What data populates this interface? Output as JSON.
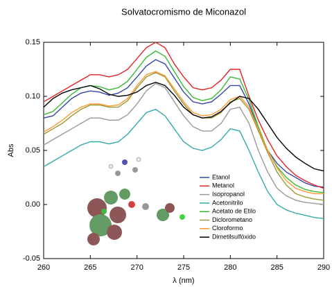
{
  "chart_data": {
    "type": "line",
    "title": "Solvatocromismo de Miconazol",
    "x_label": "λ (nm)",
    "y_label": "Abs",
    "x": [
      260,
      261,
      262,
      263,
      264,
      265,
      266,
      267,
      268,
      269,
      270,
      271,
      272,
      273,
      274,
      275,
      276,
      277,
      278,
      279,
      280,
      281,
      282,
      283,
      284,
      285,
      286,
      287,
      288,
      289,
      290
    ],
    "xlim": [
      260,
      290
    ],
    "xticks": [
      260,
      265,
      270,
      275,
      280,
      285,
      290
    ],
    "ylim": [
      -0.05,
      0.15
    ],
    "yticks": [
      -0.05,
      {
        "value": 0,
        "label": "0.00"
      },
      0.05,
      {
        "value": 0.1,
        "label": "0.10"
      },
      0.15
    ],
    "series": [
      {
        "name": "Etanol",
        "color": "#3344aa",
        "values": [
          0.08,
          0.082,
          0.09,
          0.098,
          0.103,
          0.105,
          0.104,
          0.101,
          0.103,
          0.108,
          0.118,
          0.128,
          0.134,
          0.13,
          0.117,
          0.104,
          0.095,
          0.093,
          0.095,
          0.102,
          0.11,
          0.11,
          0.093,
          0.07,
          0.05,
          0.038,
          0.03,
          0.025,
          0.02,
          0.017,
          0.016
        ]
      },
      {
        "name": "Metanol",
        "color": "#e32222",
        "values": [
          0.095,
          0.1,
          0.105,
          0.11,
          0.115,
          0.12,
          0.12,
          0.118,
          0.12,
          0.125,
          0.135,
          0.145,
          0.15,
          0.145,
          0.13,
          0.118,
          0.108,
          0.106,
          0.108,
          0.115,
          0.125,
          0.125,
          0.1,
          0.078,
          0.06,
          0.045,
          0.035,
          0.027,
          0.022,
          0.018,
          0.015
        ]
      },
      {
        "name": "Isopropanol",
        "color": "#999999",
        "values": [
          0.055,
          0.06,
          0.065,
          0.07,
          0.075,
          0.08,
          0.08,
          0.078,
          0.078,
          0.083,
          0.093,
          0.105,
          0.112,
          0.108,
          0.095,
          0.082,
          0.072,
          0.068,
          0.068,
          0.075,
          0.088,
          0.09,
          0.075,
          0.05,
          0.03,
          0.015,
          0.008,
          0.004,
          0.002,
          0.001,
          0
        ]
      },
      {
        "name": "Acetonitrilo",
        "color": "#33aaaa",
        "values": [
          0.035,
          0.04,
          0.045,
          0.05,
          0.055,
          0.058,
          0.058,
          0.056,
          0.058,
          0.065,
          0.075,
          0.085,
          0.088,
          0.082,
          0.07,
          0.058,
          0.052,
          0.05,
          0.053,
          0.06,
          0.07,
          0.068,
          0.05,
          0.03,
          0.012,
          0,
          -0.005,
          -0.008,
          -0.01,
          -0.012,
          -0.013
        ]
      },
      {
        "name": "Acetato de Etilo",
        "color": "#33bb33",
        "values": [
          0.083,
          0.086,
          0.094,
          0.102,
          0.108,
          0.11,
          0.109,
          0.106,
          0.108,
          0.114,
          0.125,
          0.136,
          0.142,
          0.137,
          0.123,
          0.109,
          0.099,
          0.096,
          0.098,
          0.106,
          0.118,
          0.116,
          0.097,
          0.072,
          0.05,
          0.035,
          0.025,
          0.018,
          0.014,
          0.012,
          0.011
        ]
      },
      {
        "name": "Diclorometano",
        "color": "#999933",
        "values": [
          0.065,
          0.07,
          0.075,
          0.082,
          0.088,
          0.092,
          0.092,
          0.09,
          0.09,
          0.096,
          0.108,
          0.118,
          0.122,
          0.118,
          0.105,
          0.093,
          0.083,
          0.08,
          0.08,
          0.085,
          0.095,
          0.098,
          0.088,
          0.068,
          0.048,
          0.03,
          0.018,
          0.01,
          0.007,
          0.005,
          0.004
        ]
      },
      {
        "name": "Cloroformo",
        "color": "#ff9933",
        "values": [
          0.067,
          0.072,
          0.078,
          0.085,
          0.09,
          0.093,
          0.093,
          0.091,
          0.092,
          0.098,
          0.11,
          0.12,
          0.123,
          0.119,
          0.107,
          0.095,
          0.085,
          0.082,
          0.083,
          0.088,
          0.097,
          0.1,
          0.09,
          0.07,
          0.05,
          0.034,
          0.022,
          0.015,
          0.012,
          0.01,
          0.01
        ]
      },
      {
        "name": "Dimetilsulfóxido",
        "color": "#000000",
        "values": [
          0.09,
          0.098,
          0.103,
          0.106,
          0.108,
          0.11,
          0.107,
          0.102,
          0.1,
          0.101,
          0.104,
          0.11,
          0.113,
          0.11,
          0.101,
          0.09,
          0.083,
          0.08,
          0.081,
          0.086,
          0.094,
          0.1,
          0.098,
          0.088,
          0.075,
          0.062,
          0.052,
          0.044,
          0.038,
          0.033,
          0.031
        ]
      }
    ]
  }
}
